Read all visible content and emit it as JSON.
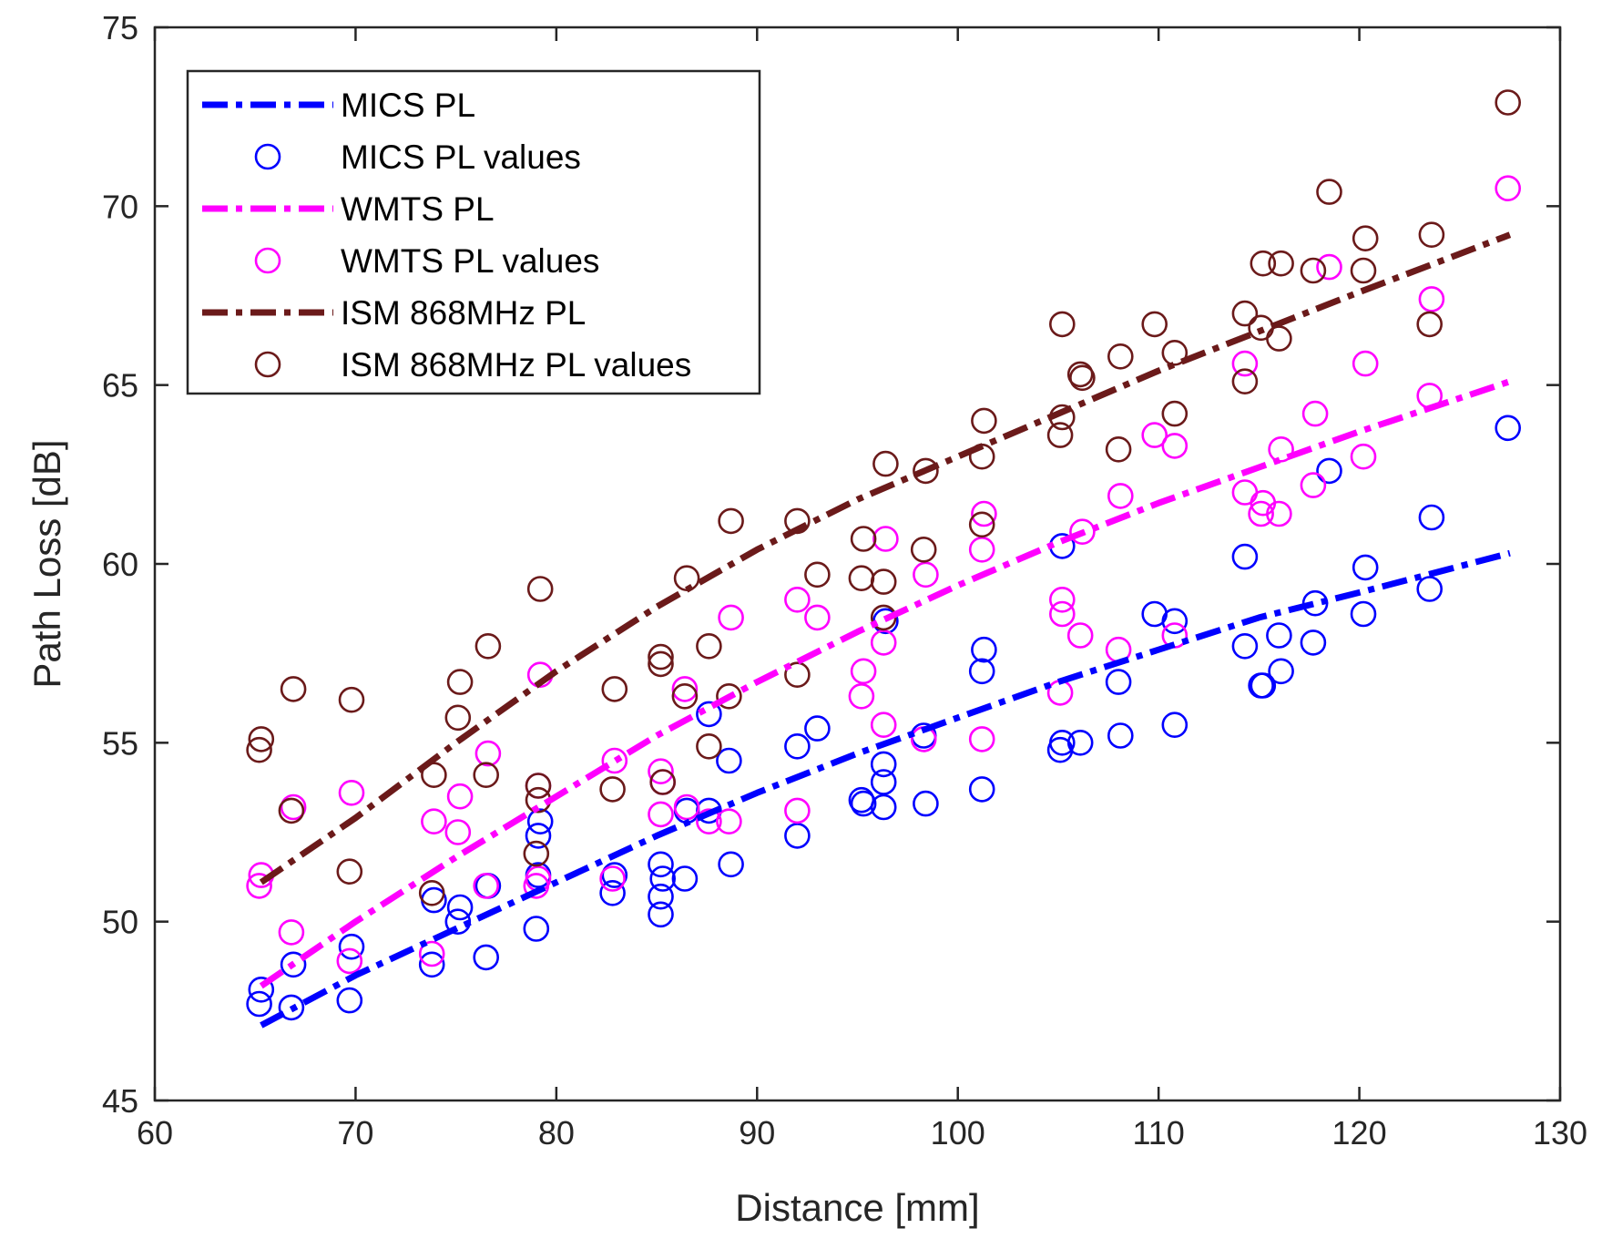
{
  "chart_data": {
    "type": "line+scatter",
    "xlabel": "Distance [mm]",
    "ylabel": "Path Loss [dB]",
    "xlim": [
      60,
      130
    ],
    "ylim": [
      45,
      75
    ],
    "xticks": [
      60,
      70,
      80,
      90,
      100,
      110,
      120,
      130
    ],
    "yticks": [
      45,
      50,
      55,
      60,
      65,
      70,
      75
    ],
    "grid": false,
    "legend_position": "top-left",
    "series": [
      {
        "name": "MICS PL",
        "kind": "line",
        "style": "dash-dot",
        "color": "#0000ff",
        "x": [
          65.3,
          70,
          75,
          80,
          85,
          90,
          95,
          100,
          105,
          110,
          115,
          120,
          127.5
        ],
        "y": [
          47.1,
          48.5,
          49.8,
          51.1,
          52.4,
          53.6,
          54.7,
          55.7,
          56.7,
          57.6,
          58.5,
          59.2,
          60.3
        ]
      },
      {
        "name": "MICS PL values",
        "kind": "scatter",
        "color": "#0000ff",
        "x": [
          65.2,
          65.3,
          66.8,
          66.9,
          69.7,
          69.8,
          73.8,
          73.9,
          75.1,
          75.2,
          76.5,
          76.6,
          79.0,
          79.1,
          79.1,
          79.2,
          82.8,
          82.9,
          85.2,
          85.2,
          85.2,
          85.3,
          86.4,
          86.5,
          87.6,
          87.6,
          88.6,
          88.7,
          92.0,
          92.0,
          93.0,
          95.2,
          95.3,
          96.3,
          96.3,
          96.3,
          96.4,
          98.3,
          98.4,
          101.2,
          101.2,
          101.3,
          105.1,
          105.2,
          105.2,
          106.1,
          108.0,
          108.1,
          109.8,
          110.8,
          110.8,
          114.3,
          114.3,
          115.1,
          115.2,
          116.0,
          116.1,
          117.7,
          117.8,
          118.5,
          120.2,
          120.3,
          123.5,
          123.6,
          127.4
        ],
        "y": [
          47.7,
          48.1,
          47.6,
          48.8,
          47.8,
          49.3,
          48.8,
          50.6,
          50.0,
          50.4,
          49.0,
          51.0,
          49.8,
          51.3,
          52.4,
          52.8,
          50.8,
          51.3,
          50.2,
          50.7,
          51.6,
          51.2,
          51.2,
          53.1,
          53.1,
          55.8,
          54.5,
          51.6,
          52.4,
          54.9,
          55.4,
          53.4,
          53.3,
          53.2,
          53.9,
          54.4,
          58.4,
          55.2,
          53.3,
          53.7,
          57.0,
          57.6,
          54.8,
          55.0,
          60.5,
          55.0,
          56.7,
          55.2,
          58.6,
          58.4,
          55.5,
          57.7,
          60.2,
          56.6,
          56.6,
          58.0,
          57.0,
          57.8,
          58.9,
          62.6,
          58.6,
          59.9,
          59.3,
          61.3,
          63.8
        ]
      },
      {
        "name": "WMTS PL",
        "kind": "line",
        "style": "dash-dot",
        "color": "#ff00ff",
        "x": [
          65.3,
          70,
          75,
          80,
          85,
          90,
          95,
          100,
          105,
          110,
          115,
          120,
          127.5
        ],
        "y": [
          48.2,
          50.0,
          51.8,
          53.5,
          55.2,
          56.7,
          58.1,
          59.4,
          60.6,
          61.7,
          62.7,
          63.7,
          65.1
        ]
      },
      {
        "name": "WMTS PL values",
        "kind": "scatter",
        "color": "#ff00ff",
        "x": [
          65.2,
          65.3,
          66.8,
          66.9,
          69.7,
          69.8,
          73.8,
          73.9,
          75.1,
          75.2,
          76.5,
          76.6,
          79.0,
          79.1,
          79.1,
          79.2,
          82.8,
          82.9,
          85.2,
          85.2,
          85.3,
          86.4,
          86.5,
          87.6,
          88.6,
          88.7,
          92.0,
          92.0,
          93.0,
          95.2,
          95.3,
          96.3,
          96.3,
          96.4,
          98.3,
          98.4,
          101.2,
          101.2,
          101.3,
          105.1,
          105.2,
          105.2,
          106.1,
          106.2,
          108.0,
          108.1,
          109.8,
          110.8,
          110.8,
          114.3,
          114.3,
          115.1,
          115.2,
          116.0,
          116.1,
          117.7,
          117.8,
          118.5,
          120.2,
          120.3,
          123.5,
          123.6,
          127.4
        ],
        "y": [
          51.0,
          51.3,
          49.7,
          53.2,
          48.9,
          53.6,
          49.1,
          52.8,
          52.5,
          53.5,
          51.0,
          54.7,
          51.0,
          51.2,
          53.8,
          56.9,
          51.2,
          54.5,
          53.0,
          54.2,
          53.9,
          56.5,
          53.2,
          52.8,
          52.8,
          58.5,
          53.1,
          59.0,
          58.5,
          56.3,
          57.0,
          55.5,
          57.8,
          60.7,
          55.1,
          59.7,
          55.1,
          60.4,
          61.4,
          56.4,
          58.6,
          59.0,
          58.0,
          60.9,
          57.6,
          61.9,
          63.6,
          58.0,
          63.3,
          62.0,
          65.6,
          61.4,
          61.7,
          61.4,
          63.2,
          62.2,
          64.2,
          68.3,
          63.0,
          65.6,
          64.7,
          67.4,
          70.5
        ]
      },
      {
        "name": "ISM 868MHz PL",
        "kind": "line",
        "style": "dash-dot",
        "color": "#6b1a1a",
        "x": [
          65.3,
          70,
          75,
          80,
          85,
          90,
          95,
          100,
          105,
          110,
          115,
          120,
          127.5
        ],
        "y": [
          51.1,
          52.9,
          55.0,
          57.0,
          58.8,
          60.4,
          61.8,
          63.0,
          64.2,
          65.4,
          66.5,
          67.6,
          69.2
        ]
      },
      {
        "name": "ISM 868MHz PL values",
        "kind": "scatter",
        "color": "#6b1a1a",
        "x": [
          65.2,
          65.3,
          66.8,
          66.9,
          69.7,
          69.8,
          73.8,
          73.9,
          75.1,
          75.2,
          76.5,
          76.6,
          79.0,
          79.1,
          79.1,
          79.2,
          82.8,
          82.9,
          85.2,
          85.2,
          85.3,
          86.4,
          86.5,
          87.6,
          87.6,
          88.6,
          88.7,
          92.0,
          92.0,
          93.0,
          95.2,
          95.3,
          96.3,
          96.3,
          96.4,
          98.3,
          98.4,
          101.2,
          101.2,
          101.3,
          105.1,
          105.2,
          105.2,
          106.1,
          106.2,
          108.0,
          108.1,
          109.8,
          110.8,
          110.8,
          114.3,
          114.3,
          115.1,
          115.2,
          116.0,
          116.1,
          117.7,
          118.5,
          120.2,
          120.3,
          123.5,
          123.6,
          127.4
        ],
        "y": [
          54.8,
          55.1,
          53.1,
          56.5,
          51.4,
          56.2,
          50.8,
          54.1,
          55.7,
          56.7,
          54.1,
          57.7,
          51.9,
          53.4,
          53.8,
          59.3,
          53.7,
          56.5,
          57.2,
          57.4,
          53.9,
          56.3,
          59.6,
          54.9,
          57.7,
          56.3,
          61.2,
          56.9,
          61.2,
          59.7,
          59.6,
          60.7,
          58.5,
          59.5,
          62.8,
          60.4,
          62.6,
          61.1,
          63.0,
          64.0,
          63.6,
          64.1,
          66.7,
          65.3,
          65.2,
          63.2,
          65.8,
          66.7,
          64.2,
          65.9,
          65.1,
          67.0,
          66.6,
          68.4,
          66.3,
          68.4,
          68.2,
          70.4,
          68.2,
          69.1,
          66.7,
          69.2,
          72.9
        ]
      }
    ]
  }
}
